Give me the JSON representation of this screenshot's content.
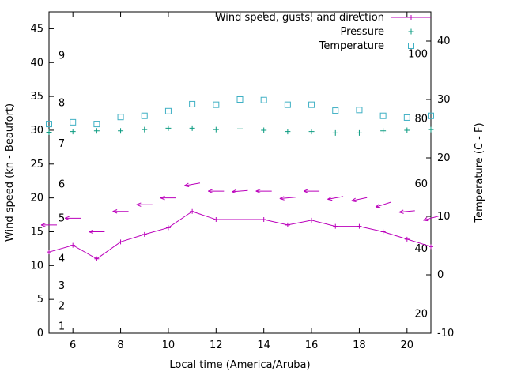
{
  "page": {
    "background": "#ffffff",
    "text_color": "#000000"
  },
  "chart_data": {
    "type": "line",
    "title": "",
    "xlabel": "Local time (America/Aruba)",
    "x": [
      5,
      6,
      7,
      8,
      9,
      10,
      11,
      12,
      13,
      14,
      15,
      16,
      17,
      18,
      19,
      20,
      21
    ],
    "xlim": [
      5,
      21
    ],
    "xticks": [
      6,
      8,
      10,
      12,
      14,
      16,
      18,
      20
    ],
    "grid": false,
    "axes": {
      "left": {
        "label": "Wind speed (kn - Beaufort)",
        "lim": [
          0,
          47.5
        ],
        "ticks": [
          0,
          5,
          10,
          15,
          20,
          25,
          30,
          35,
          40,
          45
        ]
      },
      "right": {
        "label": "Temperature (C - F)",
        "lim": [
          -10,
          45
        ],
        "ticks": [
          -10,
          0,
          10,
          20,
          30,
          40
        ]
      }
    },
    "beaufort_scale_labels": [
      {
        "text": "1",
        "kn": 1
      },
      {
        "text": "2",
        "kn": 4
      },
      {
        "text": "3",
        "kn": 7
      },
      {
        "text": "4",
        "kn": 11
      },
      {
        "text": "5",
        "kn": 17
      },
      {
        "text": "6",
        "kn": 22
      },
      {
        "text": "7",
        "kn": 28
      },
      {
        "text": "8",
        "kn": 34
      },
      {
        "text": "9",
        "kn": 41
      }
    ],
    "fahrenheit_scale_labels": [
      {
        "text": "20",
        "c": -6.67
      },
      {
        "text": "40",
        "c": 4.44
      },
      {
        "text": "60",
        "c": 15.56
      },
      {
        "text": "80",
        "c": 26.67
      },
      {
        "text": "100",
        "c": 37.78
      }
    ],
    "legend": {
      "position": "top-right",
      "entries": [
        {
          "label": "Wind speed, gusts, and direction",
          "series": "wind"
        },
        {
          "label": "Pressure",
          "series": "pressure"
        },
        {
          "label": "Temperature",
          "series": "temperature"
        }
      ]
    },
    "series": [
      {
        "id": "wind",
        "name": "Wind speed, gusts, and direction",
        "type": "linespoints",
        "marker": "plus",
        "axis": "left",
        "color": "#bb00bb",
        "values": [
          12,
          13,
          11,
          13.5,
          14.6,
          15.6,
          18,
          16.8,
          16.8,
          16.8,
          16,
          16.7,
          15.8,
          15.8,
          15,
          13.9,
          12.8
        ]
      },
      {
        "id": "gusts",
        "name": "Wind gusts (direction arrows)",
        "type": "vector",
        "axis": "left",
        "color": "#bb00bb",
        "values": [
          16,
          17,
          15,
          18,
          19,
          20,
          22,
          21,
          21,
          21,
          20,
          21,
          20,
          19.8,
          19,
          18,
          17
        ],
        "tilt_deg": [
          0,
          0,
          0,
          0,
          0,
          0,
          -10,
          0,
          -5,
          0,
          -5,
          0,
          -10,
          -12,
          -18,
          -5,
          -15
        ]
      },
      {
        "id": "pressure",
        "name": "Pressure",
        "type": "points",
        "marker": "plus",
        "axis": "left",
        "color": "#0a9b80",
        "values": [
          29.7,
          29.8,
          29.9,
          29.9,
          30.1,
          30.3,
          30.3,
          30.1,
          30.2,
          30.0,
          29.8,
          29.8,
          29.6,
          29.6,
          29.9,
          30.0,
          30.1
        ]
      },
      {
        "id": "temperature",
        "name": "Temperature",
        "type": "points",
        "marker": "square",
        "axis": "right",
        "color": "#3fb0c4",
        "values": [
          25.8,
          26.1,
          25.8,
          27.0,
          27.2,
          28.0,
          29.2,
          29.1,
          30.0,
          29.9,
          29.1,
          29.1,
          28.1,
          28.2,
          27.2,
          26.9,
          27.2
        ]
      }
    ]
  }
}
